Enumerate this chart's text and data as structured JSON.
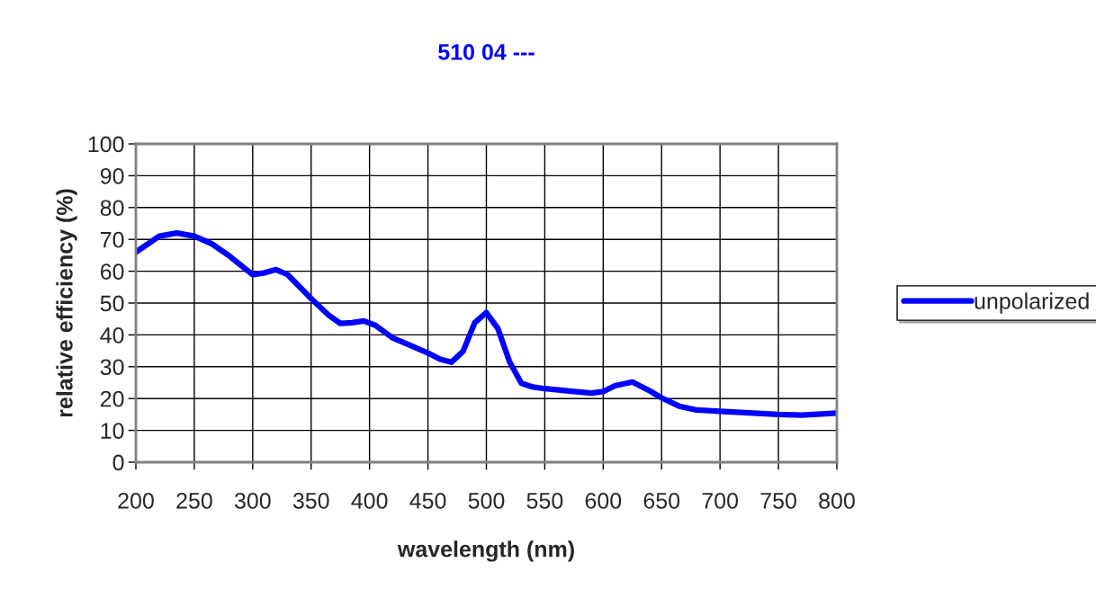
{
  "chart_data": {
    "type": "line",
    "title": "510 04 ---",
    "xlabel": "wavelength (nm)",
    "ylabel": "relative efficiency (%)",
    "xlim": [
      200,
      800
    ],
    "xticks": [
      200,
      250,
      300,
      350,
      400,
      450,
      500,
      550,
      600,
      650,
      700,
      750,
      800
    ],
    "ylim": [
      0,
      100
    ],
    "yticks": [
      0,
      10,
      20,
      30,
      40,
      50,
      60,
      70,
      80,
      90,
      100
    ],
    "grid": true,
    "legend": "right",
    "marker": "none",
    "line_style": "solid",
    "series": [
      {
        "name": "unpolarized",
        "color": "#0000ff",
        "x": [
          200,
          220,
          235,
          250,
          265,
          280,
          300,
          310,
          320,
          330,
          350,
          365,
          375,
          385,
          395,
          405,
          420,
          435,
          450,
          460,
          470,
          480,
          490,
          500,
          510,
          520,
          530,
          540,
          550,
          575,
          590,
          600,
          610,
          625,
          640,
          650,
          665,
          680,
          700,
          725,
          750,
          770,
          800
        ],
        "values": [
          66,
          71,
          72,
          71,
          68.6,
          64.8,
          58.9,
          59.5,
          60.5,
          58.9,
          51.4,
          46.2,
          43.6,
          43.8,
          44.4,
          43,
          39,
          36.7,
          34.3,
          32.4,
          31.4,
          34.8,
          43.8,
          47,
          41.9,
          31.4,
          24.8,
          23.6,
          23.1,
          22.2,
          21.7,
          22.2,
          24,
          25.2,
          22.4,
          20.2,
          17.6,
          16.4,
          16,
          15.5,
          15,
          14.8,
          15.4
        ]
      }
    ]
  }
}
